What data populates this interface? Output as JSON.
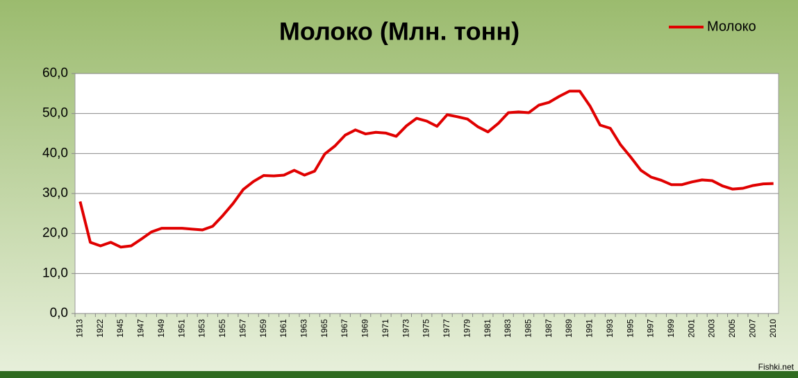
{
  "chart_data": {
    "type": "line",
    "title": "Молоко (Млн. тонн)",
    "categories": [
      "1913",
      null,
      "1922",
      null,
      "1945",
      null,
      "1947",
      null,
      "1949",
      null,
      "1951",
      null,
      "1953",
      null,
      "1955",
      null,
      "1957",
      null,
      "1959",
      null,
      "1961",
      null,
      "1963",
      null,
      "1965",
      null,
      "1967",
      null,
      "1969",
      null,
      "1971",
      null,
      "1973",
      null,
      "1975",
      null,
      "1977",
      null,
      "1979",
      null,
      "1981",
      null,
      "1983",
      null,
      "1985",
      null,
      "1987",
      null,
      "1989",
      null,
      "1991",
      null,
      "1993",
      null,
      "1995",
      null,
      "1997",
      null,
      "1999",
      null,
      "2001",
      null,
      "2003",
      null,
      "2005",
      null,
      "2007",
      null,
      "2010"
    ],
    "series": [
      {
        "name": "Молоко",
        "color": "#e00000",
        "values": [
          28.0,
          17.8,
          16.9,
          17.8,
          16.6,
          16.9,
          18.6,
          20.4,
          21.3,
          21.3,
          21.3,
          21.1,
          20.9,
          21.8,
          24.5,
          27.5,
          31.0,
          33.0,
          34.5,
          34.4,
          34.6,
          35.8,
          34.6,
          35.6,
          39.9,
          41.9,
          44.6,
          45.9,
          44.9,
          45.3,
          45.1,
          44.3,
          46.9,
          48.8,
          48.1,
          46.8,
          49.7,
          49.2,
          48.6,
          46.7,
          45.4,
          47.5,
          50.2,
          50.4,
          50.2,
          52.1,
          52.8,
          54.3,
          55.6,
          55.6,
          51.9,
          47.1,
          46.3,
          42.2,
          39.1,
          35.8,
          34.1,
          33.3,
          32.2,
          32.2,
          32.9,
          33.4,
          33.2,
          31.9,
          31.1,
          31.3,
          32.0,
          32.4,
          32.5
        ]
      }
    ],
    "ylim": [
      0,
      60
    ],
    "yticks": [
      {
        "value": 0,
        "label": "0,0"
      },
      {
        "value": 10,
        "label": "10,0"
      },
      {
        "value": 20,
        "label": "20,0"
      },
      {
        "value": 30,
        "label": "30,0"
      },
      {
        "value": 40,
        "label": "40,0"
      },
      {
        "value": 50,
        "label": "50,0"
      },
      {
        "value": 60,
        "label": "60,0"
      }
    ],
    "grid": true,
    "legend": "top-right",
    "watermark": "Fishki.net"
  }
}
